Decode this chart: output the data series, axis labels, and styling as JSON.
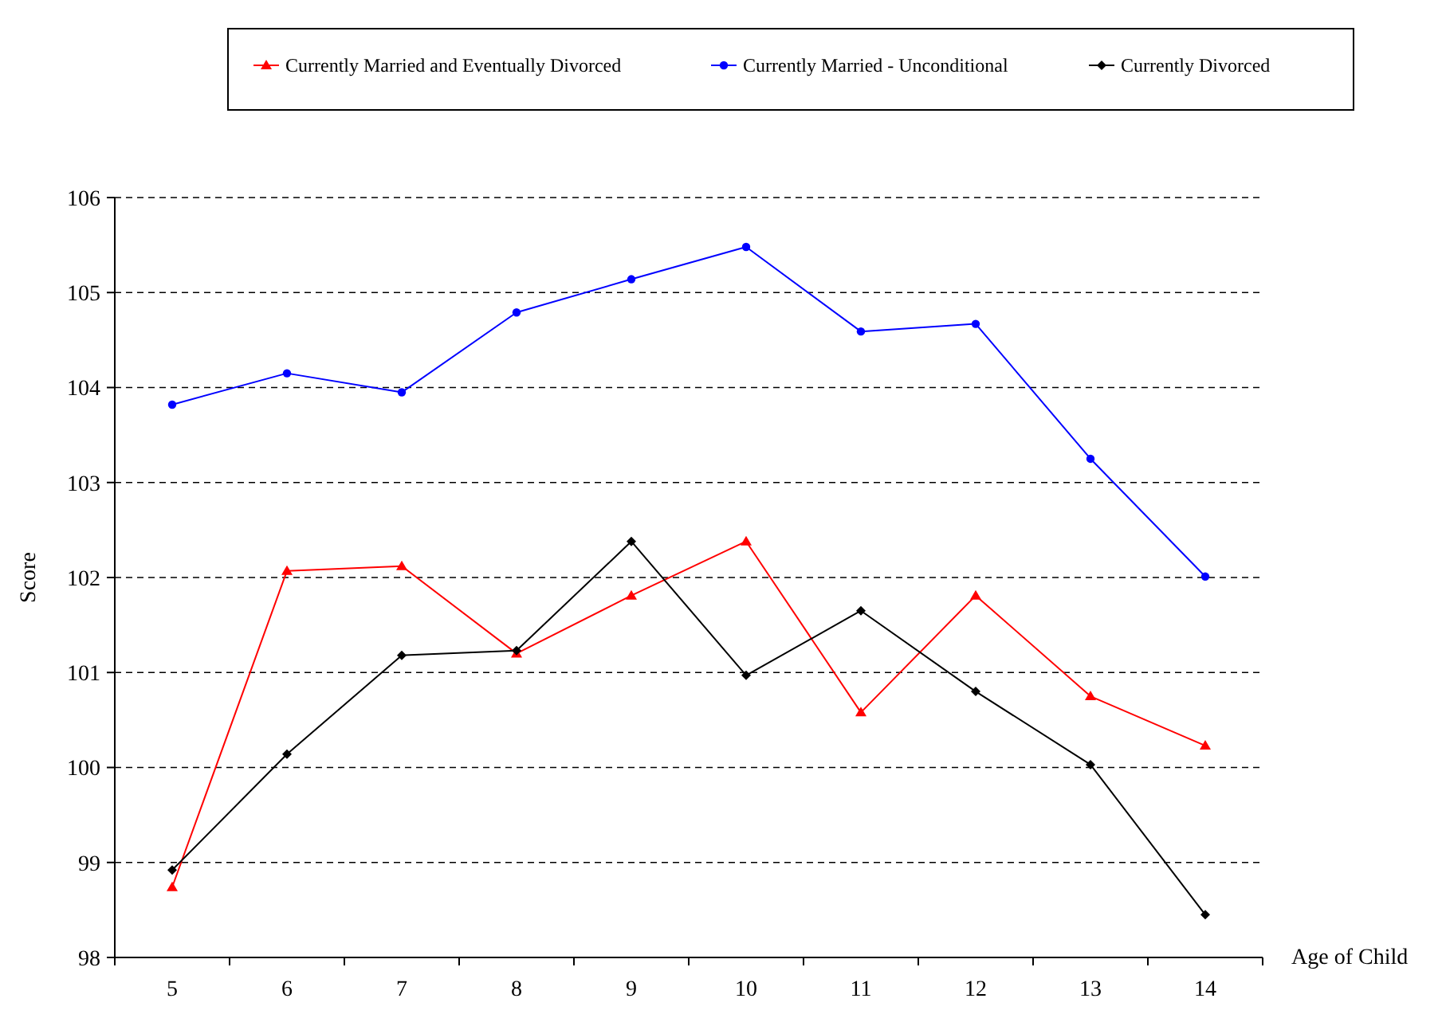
{
  "chart_data": {
    "type": "line",
    "xlabel": "Age of Child",
    "ylabel": "Score",
    "categories": [
      "5",
      "6",
      "7",
      "8",
      "9",
      "10",
      "11",
      "12",
      "13",
      "14"
    ],
    "series": [
      {
        "name": "Currently Married and Eventually Divorced",
        "color": "#ff0000",
        "marker": "triangle",
        "values": [
          98.74,
          102.07,
          102.12,
          101.2,
          101.81,
          102.38,
          100.58,
          101.81,
          100.75,
          100.23
        ]
      },
      {
        "name": "Currently Married - Unconditional",
        "color": "#0000ff",
        "marker": "circle",
        "values": [
          103.82,
          104.15,
          103.95,
          104.79,
          105.14,
          105.48,
          104.59,
          104.67,
          103.25,
          102.01
        ]
      },
      {
        "name": "Currently Divorced",
        "color": "#000000",
        "marker": "diamond",
        "values": [
          98.92,
          100.14,
          101.18,
          101.23,
          102.38,
          100.97,
          101.65,
          100.8,
          100.03,
          98.45
        ]
      }
    ],
    "ylim": [
      98,
      106
    ],
    "yticks": [
      98,
      99,
      100,
      101,
      102,
      103,
      104,
      105,
      106
    ],
    "grid": "y",
    "line_style": "solid",
    "legend": "top"
  }
}
